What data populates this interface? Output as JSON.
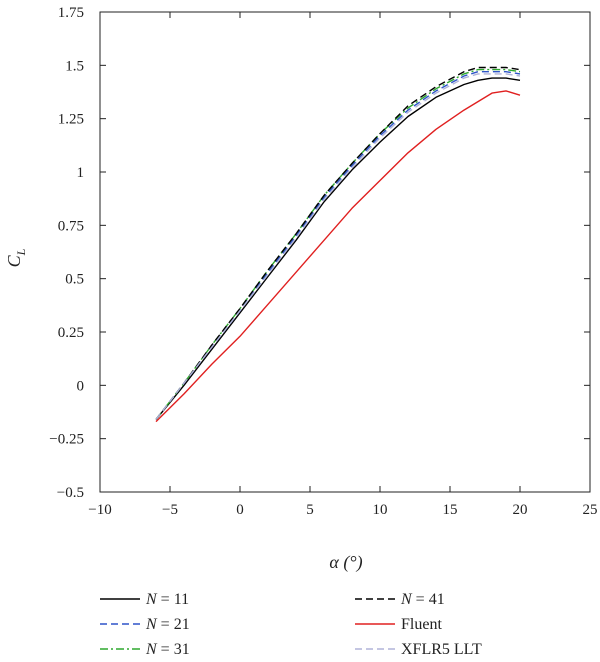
{
  "chart_data": {
    "type": "line",
    "title": "",
    "xlabel": "α (°)",
    "ylabel": "C",
    "ylabel_sub": "L",
    "xlim": [
      -10,
      25
    ],
    "ylim": [
      -0.5,
      1.75
    ],
    "xticks": [
      -10,
      -5,
      0,
      5,
      10,
      15,
      20,
      25
    ],
    "xtick_labels": [
      "−10",
      "−5",
      "0",
      "5",
      "10",
      "15",
      "20",
      "25"
    ],
    "yticks": [
      -0.5,
      -0.25,
      0,
      0.25,
      0.5,
      0.75,
      1,
      1.25,
      1.5,
      1.75
    ],
    "ytick_labels": [
      "−0.5",
      "−0.25",
      "0",
      "0.25",
      "0.5",
      "0.75",
      "1",
      "1.25",
      "1.5",
      "1.75"
    ],
    "grid": false,
    "legend_position": "bottom",
    "series": [
      {
        "name": "N = 11",
        "legend_var": "N",
        "legend_value": " = 11",
        "color": "#000000",
        "dash": "solid",
        "x": [
          -6,
          -4,
          -2,
          0,
          2,
          4,
          6,
          8,
          10,
          12,
          14,
          16,
          17,
          18,
          19,
          20
        ],
        "y": [
          -0.16,
          0.0,
          0.17,
          0.34,
          0.51,
          0.68,
          0.86,
          1.01,
          1.14,
          1.26,
          1.35,
          1.41,
          1.43,
          1.44,
          1.44,
          1.43
        ]
      },
      {
        "name": "N = 21",
        "legend_var": "N",
        "legend_value": " = 21",
        "color": "#2e54c8",
        "dash": "dash",
        "x": [
          -6,
          -4,
          -2,
          0,
          2,
          4,
          6,
          8,
          10,
          12,
          14,
          16,
          17,
          18,
          19,
          20
        ],
        "y": [
          -0.16,
          0.01,
          0.18,
          0.35,
          0.53,
          0.7,
          0.88,
          1.03,
          1.17,
          1.29,
          1.38,
          1.45,
          1.47,
          1.47,
          1.47,
          1.46
        ]
      },
      {
        "name": "N = 31",
        "legend_var": "N",
        "legend_value": " = 31",
        "color": "#2ea82e",
        "dash": "dashdot",
        "x": [
          -6,
          -4,
          -2,
          0,
          2,
          4,
          6,
          8,
          10,
          12,
          14,
          16,
          17,
          18,
          19,
          20
        ],
        "y": [
          -0.16,
          0.01,
          0.19,
          0.36,
          0.54,
          0.71,
          0.89,
          1.04,
          1.18,
          1.3,
          1.39,
          1.46,
          1.48,
          1.48,
          1.48,
          1.47
        ]
      },
      {
        "name": "N = 41",
        "legend_var": "N",
        "legend_value": " = 41",
        "color": "#000000",
        "dash": "dash",
        "x": [
          -6,
          -4,
          -2,
          0,
          2,
          4,
          6,
          8,
          10,
          12,
          14,
          16,
          17,
          18,
          19,
          20
        ],
        "y": [
          -0.16,
          0.01,
          0.19,
          0.36,
          0.54,
          0.71,
          0.89,
          1.04,
          1.18,
          1.31,
          1.4,
          1.47,
          1.49,
          1.49,
          1.49,
          1.48
        ]
      },
      {
        "name": "Fluent",
        "legend_var": "",
        "legend_value": "Fluent",
        "color": "#e02020",
        "dash": "solid",
        "x": [
          -6,
          -4,
          -2,
          0,
          2,
          4,
          6,
          8,
          10,
          12,
          14,
          16,
          18,
          19,
          20
        ],
        "y": [
          -0.17,
          -0.04,
          0.1,
          0.23,
          0.38,
          0.53,
          0.68,
          0.83,
          0.96,
          1.09,
          1.2,
          1.29,
          1.37,
          1.38,
          1.36
        ]
      },
      {
        "name": "XFLR5 LLT",
        "legend_var": "",
        "legend_value": "XFLR5 LLT",
        "color": "#b0b4d8",
        "dash": "dash",
        "x": [
          -6,
          -4,
          -2,
          0,
          2,
          4,
          6,
          8,
          10,
          12,
          14,
          16,
          17,
          18,
          19,
          20
        ],
        "y": [
          -0.16,
          0.01,
          0.18,
          0.35,
          0.52,
          0.69,
          0.87,
          1.02,
          1.16,
          1.28,
          1.37,
          1.44,
          1.46,
          1.46,
          1.46,
          1.45
        ]
      }
    ]
  }
}
